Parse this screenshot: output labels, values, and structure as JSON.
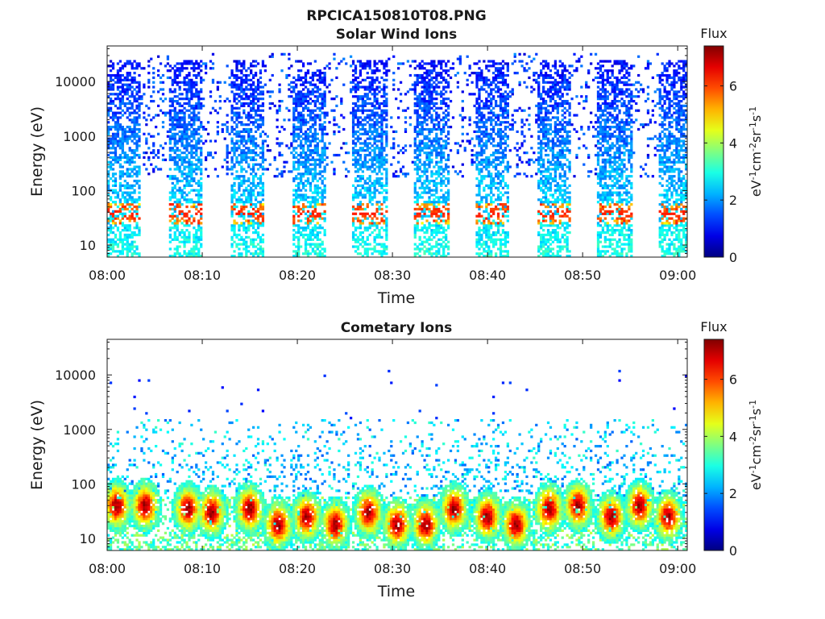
{
  "figure": {
    "title": "RPCICA150810T08.PNG"
  },
  "chart_data": [
    {
      "type": "heatmap",
      "title": "Solar Wind Ions",
      "xlabel": "Time",
      "ylabel": "Energy (eV)",
      "x_ticks": [
        "08:00",
        "08:10",
        "08:20",
        "08:30",
        "08:40",
        "08:50",
        "09:00"
      ],
      "x_range_minutes": [
        0,
        61
      ],
      "yscale": "log",
      "ylim": [
        6,
        45000
      ],
      "y_ticks": [
        10,
        100,
        1000,
        10000
      ],
      "y_tick_labels": [
        "10",
        "100",
        "1000",
        "10000"
      ],
      "colorbar": {
        "label": "Flux",
        "unit": "eV-1cm-2sr-1s-1",
        "range": [
          0,
          7.4
        ],
        "ticks": [
          0,
          2,
          4,
          6
        ],
        "colormap": "jet"
      },
      "features": {
        "sweeps_start_minutes": [
          0,
          6.5,
          12.9,
          19.4,
          25.8,
          32.3,
          38.7,
          45.2,
          51.6,
          58.1
        ],
        "sweep_duration_minutes": 3.6,
        "upper_band_ev": [
          180,
          35000
        ],
        "peak_flux_ev": 38,
        "typical_flux": 2.5,
        "peak_flux": 6.3
      }
    },
    {
      "type": "heatmap",
      "title": "Cometary Ions",
      "xlabel": "Time",
      "ylabel": "Energy (eV)",
      "x_ticks": [
        "08:00",
        "08:10",
        "08:20",
        "08:30",
        "08:40",
        "08:50",
        "09:00"
      ],
      "x_range_minutes": [
        0,
        61
      ],
      "yscale": "log",
      "ylim": [
        6,
        45000
      ],
      "y_ticks": [
        10,
        100,
        1000,
        10000
      ],
      "y_tick_labels": [
        "10",
        "100",
        "1000",
        "10000"
      ],
      "colorbar": {
        "label": "Flux",
        "unit": "eV-1cm-2sr-1s-1",
        "range": [
          0,
          7.4
        ],
        "ticks": [
          0,
          2,
          4,
          6
        ],
        "colormap": "jet"
      },
      "features": {
        "hot_spot_minutes": [
          1,
          4,
          8.5,
          11,
          15,
          18,
          21,
          24,
          27.5,
          30.5,
          33.5,
          36.5,
          40,
          43,
          46.5,
          49.5,
          53,
          56,
          59
        ],
        "hot_spot_ev": [
          40,
          40,
          35,
          30,
          35,
          18,
          25,
          18,
          30,
          18,
          18,
          35,
          25,
          18,
          35,
          40,
          25,
          40,
          25
        ],
        "peak_flux": 7.2,
        "diffuse_band_ev": [
          80,
          1500
        ]
      }
    }
  ],
  "colors": {
    "background": "#ffffff",
    "axis": "#1a1a1a"
  }
}
